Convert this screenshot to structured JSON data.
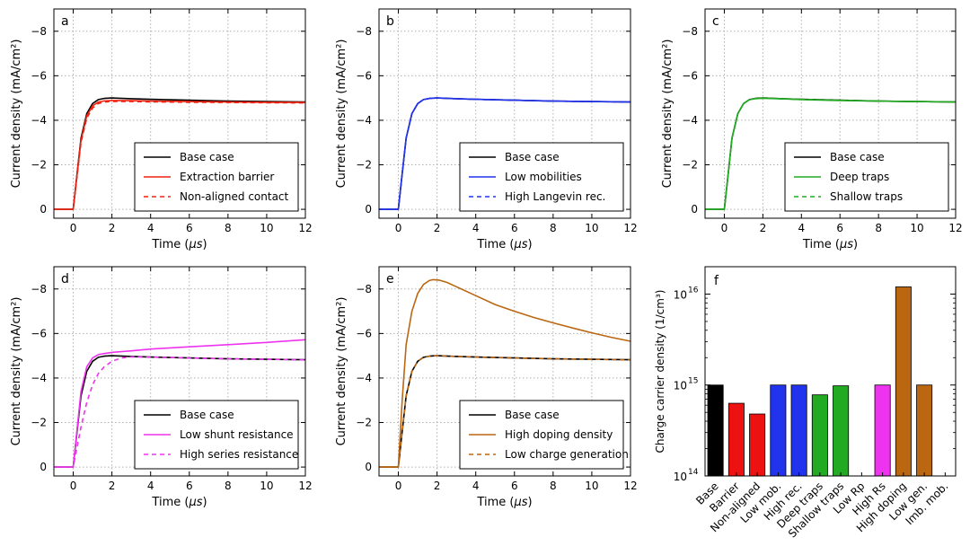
{
  "chart_data": [
    {
      "type": "line",
      "panel": "a",
      "xlabel": "Time (μs)",
      "ylabel": "Current density (mA/cm²)",
      "xlim": [
        -1,
        12
      ],
      "ylim": [
        0.4,
        -9
      ],
      "xticks": [
        0,
        2,
        4,
        6,
        8,
        10,
        12
      ],
      "yticks": [
        0,
        -2,
        -4,
        -6,
        -8
      ],
      "legend_position": "lower-right",
      "series": [
        {
          "name": "Base case",
          "color": "#000000",
          "dash": "solid",
          "x": [
            -1,
            0,
            0.2,
            0.4,
            0.7,
            1.0,
            1.3,
            1.6,
            2,
            3,
            4,
            6,
            8,
            10,
            12
          ],
          "y": [
            0,
            0,
            -1.6,
            -3.2,
            -4.3,
            -4.75,
            -4.93,
            -4.98,
            -5.0,
            -4.97,
            -4.94,
            -4.9,
            -4.86,
            -4.84,
            -4.82
          ]
        },
        {
          "name": "Extraction barrier",
          "color": "#ee2211",
          "dash": "solid",
          "x": [
            -1,
            0,
            0.2,
            0.4,
            0.7,
            1.0,
            1.3,
            1.6,
            2,
            3,
            4,
            6,
            8,
            10,
            12
          ],
          "y": [
            0,
            0,
            -1.55,
            -3.1,
            -4.2,
            -4.65,
            -4.82,
            -4.87,
            -4.89,
            -4.88,
            -4.86,
            -4.84,
            -4.82,
            -4.81,
            -4.8
          ]
        },
        {
          "name": "Non-aligned contact",
          "color": "#ee2211",
          "dash": "dashed",
          "x": [
            -1,
            0,
            0.2,
            0.4,
            0.7,
            1.0,
            1.3,
            1.6,
            2,
            3,
            4,
            6,
            8,
            10,
            12
          ],
          "y": [
            0,
            0,
            -1.5,
            -3.0,
            -4.1,
            -4.55,
            -4.75,
            -4.82,
            -4.85,
            -4.84,
            -4.83,
            -4.81,
            -4.8,
            -4.79,
            -4.78
          ]
        }
      ]
    },
    {
      "type": "line",
      "panel": "b",
      "xlabel": "Time (μs)",
      "ylabel": "Current density (mA/cm²)",
      "xlim": [
        -1,
        12
      ],
      "ylim": [
        0.4,
        -9
      ],
      "xticks": [
        0,
        2,
        4,
        6,
        8,
        10,
        12
      ],
      "yticks": [
        0,
        -2,
        -4,
        -6,
        -8
      ],
      "legend_position": "lower-right",
      "series": [
        {
          "name": "Base case",
          "color": "#000000",
          "dash": "solid",
          "x": [
            -1,
            0,
            0.2,
            0.4,
            0.7,
            1.0,
            1.3,
            1.6,
            2,
            3,
            4,
            6,
            8,
            10,
            12
          ],
          "y": [
            0,
            0,
            -1.6,
            -3.2,
            -4.3,
            -4.75,
            -4.93,
            -4.98,
            -5.0,
            -4.97,
            -4.94,
            -4.9,
            -4.86,
            -4.84,
            -4.82
          ]
        },
        {
          "name": "Low mobilities",
          "color": "#2233ee",
          "dash": "solid",
          "x": [
            -1,
            0,
            0.2,
            0.4,
            0.7,
            1.0,
            1.3,
            1.6,
            2,
            3,
            4,
            6,
            8,
            10,
            12
          ],
          "y": [
            0,
            0,
            -1.6,
            -3.2,
            -4.3,
            -4.75,
            -4.93,
            -4.98,
            -5.0,
            -4.97,
            -4.94,
            -4.9,
            -4.86,
            -4.84,
            -4.82
          ]
        },
        {
          "name": "High Langevin rec.",
          "color": "#2233ee",
          "dash": "dashed",
          "x": [
            -1,
            0,
            0.2,
            0.4,
            0.7,
            1.0,
            1.3,
            1.6,
            2,
            3,
            4,
            6,
            8,
            10,
            12
          ],
          "y": [
            0,
            0,
            -1.6,
            -3.2,
            -4.3,
            -4.75,
            -4.93,
            -4.98,
            -5.0,
            -4.97,
            -4.94,
            -4.9,
            -4.86,
            -4.84,
            -4.82
          ]
        }
      ]
    },
    {
      "type": "line",
      "panel": "c",
      "xlabel": "Time (μs)",
      "ylabel": "Current density (mA/cm²)",
      "xlim": [
        -1,
        12
      ],
      "ylim": [
        0.4,
        -9
      ],
      "xticks": [
        0,
        2,
        4,
        6,
        8,
        10,
        12
      ],
      "yticks": [
        0,
        -2,
        -4,
        -6,
        -8
      ],
      "legend_position": "lower-right",
      "series": [
        {
          "name": "Base case",
          "color": "#000000",
          "dash": "solid",
          "x": [
            -1,
            0,
            0.2,
            0.4,
            0.7,
            1.0,
            1.3,
            1.6,
            2,
            3,
            4,
            6,
            8,
            10,
            12
          ],
          "y": [
            0,
            0,
            -1.6,
            -3.2,
            -4.3,
            -4.75,
            -4.93,
            -4.98,
            -5.0,
            -4.97,
            -4.94,
            -4.9,
            -4.86,
            -4.84,
            -4.82
          ]
        },
        {
          "name": "Deep traps",
          "color": "#22aa22",
          "dash": "solid",
          "x": [
            -1,
            0,
            0.2,
            0.4,
            0.7,
            1.0,
            1.3,
            1.6,
            2,
            3,
            4,
            6,
            8,
            10,
            12
          ],
          "y": [
            0,
            0,
            -1.6,
            -3.2,
            -4.3,
            -4.75,
            -4.92,
            -4.97,
            -4.99,
            -4.96,
            -4.93,
            -4.89,
            -4.86,
            -4.84,
            -4.82
          ]
        },
        {
          "name": "Shallow traps",
          "color": "#22aa22",
          "dash": "dashed",
          "x": [
            -1,
            0,
            0.2,
            0.4,
            0.7,
            1.0,
            1.3,
            1.6,
            2,
            3,
            4,
            6,
            8,
            10,
            12
          ],
          "y": [
            0,
            0,
            -1.6,
            -3.2,
            -4.3,
            -4.75,
            -4.93,
            -4.98,
            -5.0,
            -4.97,
            -4.94,
            -4.9,
            -4.86,
            -4.84,
            -4.82
          ]
        }
      ]
    },
    {
      "type": "line",
      "panel": "d",
      "xlabel": "Time (μs)",
      "ylabel": "Current density (mA/cm²)",
      "xlim": [
        -1,
        12
      ],
      "ylim": [
        0.4,
        -9
      ],
      "xticks": [
        0,
        2,
        4,
        6,
        8,
        10,
        12
      ],
      "yticks": [
        0,
        -2,
        -4,
        -6,
        -8
      ],
      "legend_position": "lower-right",
      "series": [
        {
          "name": "Base case",
          "color": "#000000",
          "dash": "solid",
          "x": [
            -1,
            0,
            0.2,
            0.4,
            0.7,
            1.0,
            1.3,
            1.6,
            2,
            3,
            4,
            6,
            8,
            10,
            12
          ],
          "y": [
            0,
            0,
            -1.6,
            -3.2,
            -4.3,
            -4.75,
            -4.93,
            -4.98,
            -5.0,
            -4.97,
            -4.94,
            -4.9,
            -4.86,
            -4.84,
            -4.82
          ]
        },
        {
          "name": "Low shunt resistance",
          "color": "#ee33ee",
          "dash": "solid",
          "x": [
            -1,
            0,
            0.2,
            0.4,
            0.7,
            1.0,
            1.3,
            1.6,
            2,
            3,
            4,
            6,
            8,
            10,
            12
          ],
          "y": [
            0,
            0,
            -1.7,
            -3.4,
            -4.5,
            -4.9,
            -5.05,
            -5.1,
            -5.15,
            -5.22,
            -5.3,
            -5.4,
            -5.5,
            -5.6,
            -5.72
          ]
        },
        {
          "name": "High series resistance",
          "color": "#ee33ee",
          "dash": "dashed",
          "x": [
            -1,
            0,
            0.2,
            0.4,
            0.7,
            1.0,
            1.3,
            1.6,
            2,
            2.5,
            3,
            4,
            6,
            8,
            10,
            12
          ],
          "y": [
            0,
            0,
            -0.9,
            -1.8,
            -2.9,
            -3.7,
            -4.2,
            -4.5,
            -4.75,
            -4.9,
            -4.95,
            -4.94,
            -4.9,
            -4.86,
            -4.84,
            -4.82
          ]
        }
      ]
    },
    {
      "type": "line",
      "panel": "e",
      "xlabel": "Time (μs)",
      "ylabel": "Current density (mA/cm²)",
      "xlim": [
        -1,
        12
      ],
      "ylim": [
        0.4,
        -9
      ],
      "xticks": [
        0,
        2,
        4,
        6,
        8,
        10,
        12
      ],
      "yticks": [
        0,
        -2,
        -4,
        -6,
        -8
      ],
      "legend_position": "lower-right",
      "series": [
        {
          "name": "Base case",
          "color": "#000000",
          "dash": "solid",
          "x": [
            -1,
            0,
            0.2,
            0.4,
            0.7,
            1.0,
            1.3,
            1.6,
            2,
            3,
            4,
            6,
            8,
            10,
            12
          ],
          "y": [
            0,
            0,
            -1.6,
            -3.2,
            -4.3,
            -4.75,
            -4.93,
            -4.98,
            -5.0,
            -4.97,
            -4.94,
            -4.9,
            -4.86,
            -4.84,
            -4.82
          ]
        },
        {
          "name": "High doping density",
          "color": "#bb6611",
          "dash": "solid",
          "x": [
            -1,
            0,
            0.2,
            0.4,
            0.7,
            1.0,
            1.3,
            1.6,
            1.8,
            2.1,
            2.5,
            3,
            4,
            5,
            6,
            7,
            8,
            9,
            10,
            11,
            12
          ],
          "y": [
            0,
            0,
            -3.0,
            -5.5,
            -7.0,
            -7.8,
            -8.2,
            -8.38,
            -8.42,
            -8.4,
            -8.3,
            -8.1,
            -7.7,
            -7.3,
            -7.0,
            -6.72,
            -6.48,
            -6.25,
            -6.03,
            -5.83,
            -5.65
          ]
        },
        {
          "name": "Low charge generation",
          "color": "#bb6611",
          "dash": "dashed",
          "x": [
            -1,
            0,
            0.2,
            0.4,
            0.7,
            1.0,
            1.3,
            1.6,
            2,
            3,
            4,
            6,
            8,
            10,
            12
          ],
          "y": [
            0,
            0,
            -1.6,
            -3.2,
            -4.3,
            -4.75,
            -4.93,
            -4.98,
            -5.0,
            -4.97,
            -4.94,
            -4.9,
            -4.86,
            -4.84,
            -4.82
          ]
        }
      ]
    },
    {
      "type": "bar",
      "panel": "f",
      "yscale": "log",
      "ylabel": "Charge carrier density (1/cm³)",
      "ylim": [
        100000000000000.0,
        2e+16
      ],
      "yticks": [
        100000000000000.0,
        1000000000000000.0,
        1e+16
      ],
      "ytick_labels": [
        "10",
        "10",
        "10"
      ],
      "ytick_exponents": [
        "14",
        "15",
        "16"
      ],
      "categories": [
        "Base",
        "Barrier",
        "Non-aligned",
        "Low mob.",
        "High rec.",
        "Deep traps",
        "Shallow traps",
        "Low Rp",
        "High Rs",
        "High doping",
        "Low gen.",
        "Imb. mob."
      ],
      "values": [
        1000000000000000.0,
        630000000000000.0,
        480000000000000.0,
        1000000000000000.0,
        1000000000000000.0,
        780000000000000.0,
        980000000000000.0,
        null,
        1000000000000000.0,
        1.2e+16,
        1000000000000000.0,
        null
      ],
      "colors": [
        "#000000",
        "#ee1111",
        "#ee1111",
        "#2233ee",
        "#2233ee",
        "#22aa22",
        "#22aa22",
        "#ee33ee",
        "#ee33ee",
        "#bb6611",
        "#bb6611",
        "#bb6611"
      ]
    }
  ],
  "panel_letters": [
    "a",
    "b",
    "c",
    "d",
    "e",
    "f"
  ]
}
